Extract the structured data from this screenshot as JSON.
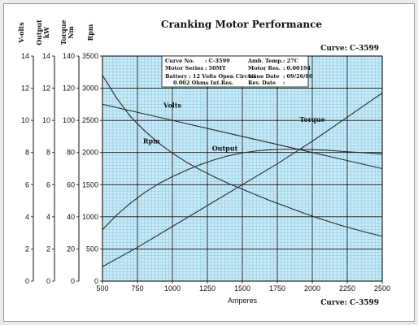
{
  "page": {
    "title": "Cranking Motor Performance",
    "curve_label_top": "Curve: C-3599",
    "curve_label_bottom": "Curve: C-3599"
  },
  "info_box": {
    "rows": [
      {
        "left_label": "Curve No.",
        "left_value": ": C-3599",
        "right_label": "Amb. Temp.",
        "right_value": ":  27C"
      },
      {
        "left_label": "Motor Series",
        "left_value": ": 50MT",
        "right_label": "Motor Res.",
        "right_value": ": 0.00194"
      }
    ],
    "battery_label": "Battery : 12 Volts Open Circuit",
    "battery_res": "0.002 Ohms Int.Res.",
    "issue_label": "Issue Date",
    "issue_value": ": 09/26/80",
    "rev_label": "Rev. Date",
    "rev_value": ":"
  },
  "chart_data": {
    "type": "line",
    "title": "Cranking Motor Performance",
    "xlabel": "Amperes",
    "xlim": [
      500,
      2500
    ],
    "x_ticks": [
      500,
      750,
      1000,
      1250,
      1500,
      1750,
      2000,
      2250,
      2500
    ],
    "grid": true,
    "axes": [
      {
        "id": "volts",
        "label": "V-olts",
        "range": [
          0,
          14
        ],
        "ticks": [
          0,
          2,
          4,
          6,
          8,
          10,
          12,
          14
        ]
      },
      {
        "id": "output",
        "label": "Output kW",
        "range": [
          0,
          14
        ],
        "ticks": [
          0,
          2,
          4,
          6,
          8,
          10,
          12,
          14
        ]
      },
      {
        "id": "torque",
        "label": "Torque Nm",
        "range": [
          0,
          140
        ],
        "ticks": [
          0,
          20,
          40,
          60,
          80,
          100,
          120,
          140
        ]
      },
      {
        "id": "rpm",
        "label": "Rpm",
        "range": [
          0,
          3500
        ],
        "ticks": [
          0,
          500,
          1000,
          1500,
          2000,
          2500,
          3000,
          3500
        ]
      }
    ],
    "series": [
      {
        "name": "Volts",
        "axis": "volts",
        "x": [
          500,
          750,
          1000,
          1250,
          1500,
          1750,
          2000,
          2250,
          2500
        ],
        "y": [
          11.0,
          10.5,
          10.0,
          9.5,
          9.0,
          8.5,
          8.0,
          7.5,
          7.0
        ]
      },
      {
        "name": "Rpm",
        "axis": "rpm",
        "x": [
          500,
          600,
          700,
          800,
          900,
          1000,
          1100,
          1200,
          1300,
          1400,
          1500,
          1600,
          1700,
          1800,
          1900,
          2000,
          2100,
          2200,
          2300,
          2400,
          2500
        ],
        "y": [
          3200,
          2850,
          2560,
          2340,
          2150,
          1990,
          1850,
          1730,
          1620,
          1520,
          1430,
          1340,
          1250,
          1170,
          1090,
          1010,
          940,
          870,
          810,
          750,
          700
        ]
      },
      {
        "name": "Output",
        "axis": "output",
        "x": [
          500,
          600,
          700,
          800,
          900,
          1000,
          1100,
          1200,
          1300,
          1400,
          1500,
          1600,
          1700,
          1800,
          1900,
          2000,
          2100,
          2200,
          2300,
          2400,
          2500
        ],
        "y": [
          3.2,
          4.1,
          4.85,
          5.5,
          6.05,
          6.5,
          6.9,
          7.25,
          7.55,
          7.8,
          7.98,
          8.1,
          8.17,
          8.2,
          8.2,
          8.18,
          8.14,
          8.08,
          8.02,
          7.97,
          7.9
        ]
      },
      {
        "name": "Torque",
        "axis": "torque",
        "x": [
          500,
          750,
          1000,
          1250,
          1500,
          1750,
          2000,
          2250,
          2500
        ],
        "y": [
          9,
          21,
          34,
          47,
          60,
          73,
          87,
          102,
          117
        ]
      }
    ],
    "series_label_positions": {
      "Volts": [
        1000,
        10.8
      ],
      "Rpm": [
        850,
        2140
      ],
      "Output": [
        1375,
        8.1
      ],
      "Torque": [
        2000,
        99
      ]
    }
  }
}
